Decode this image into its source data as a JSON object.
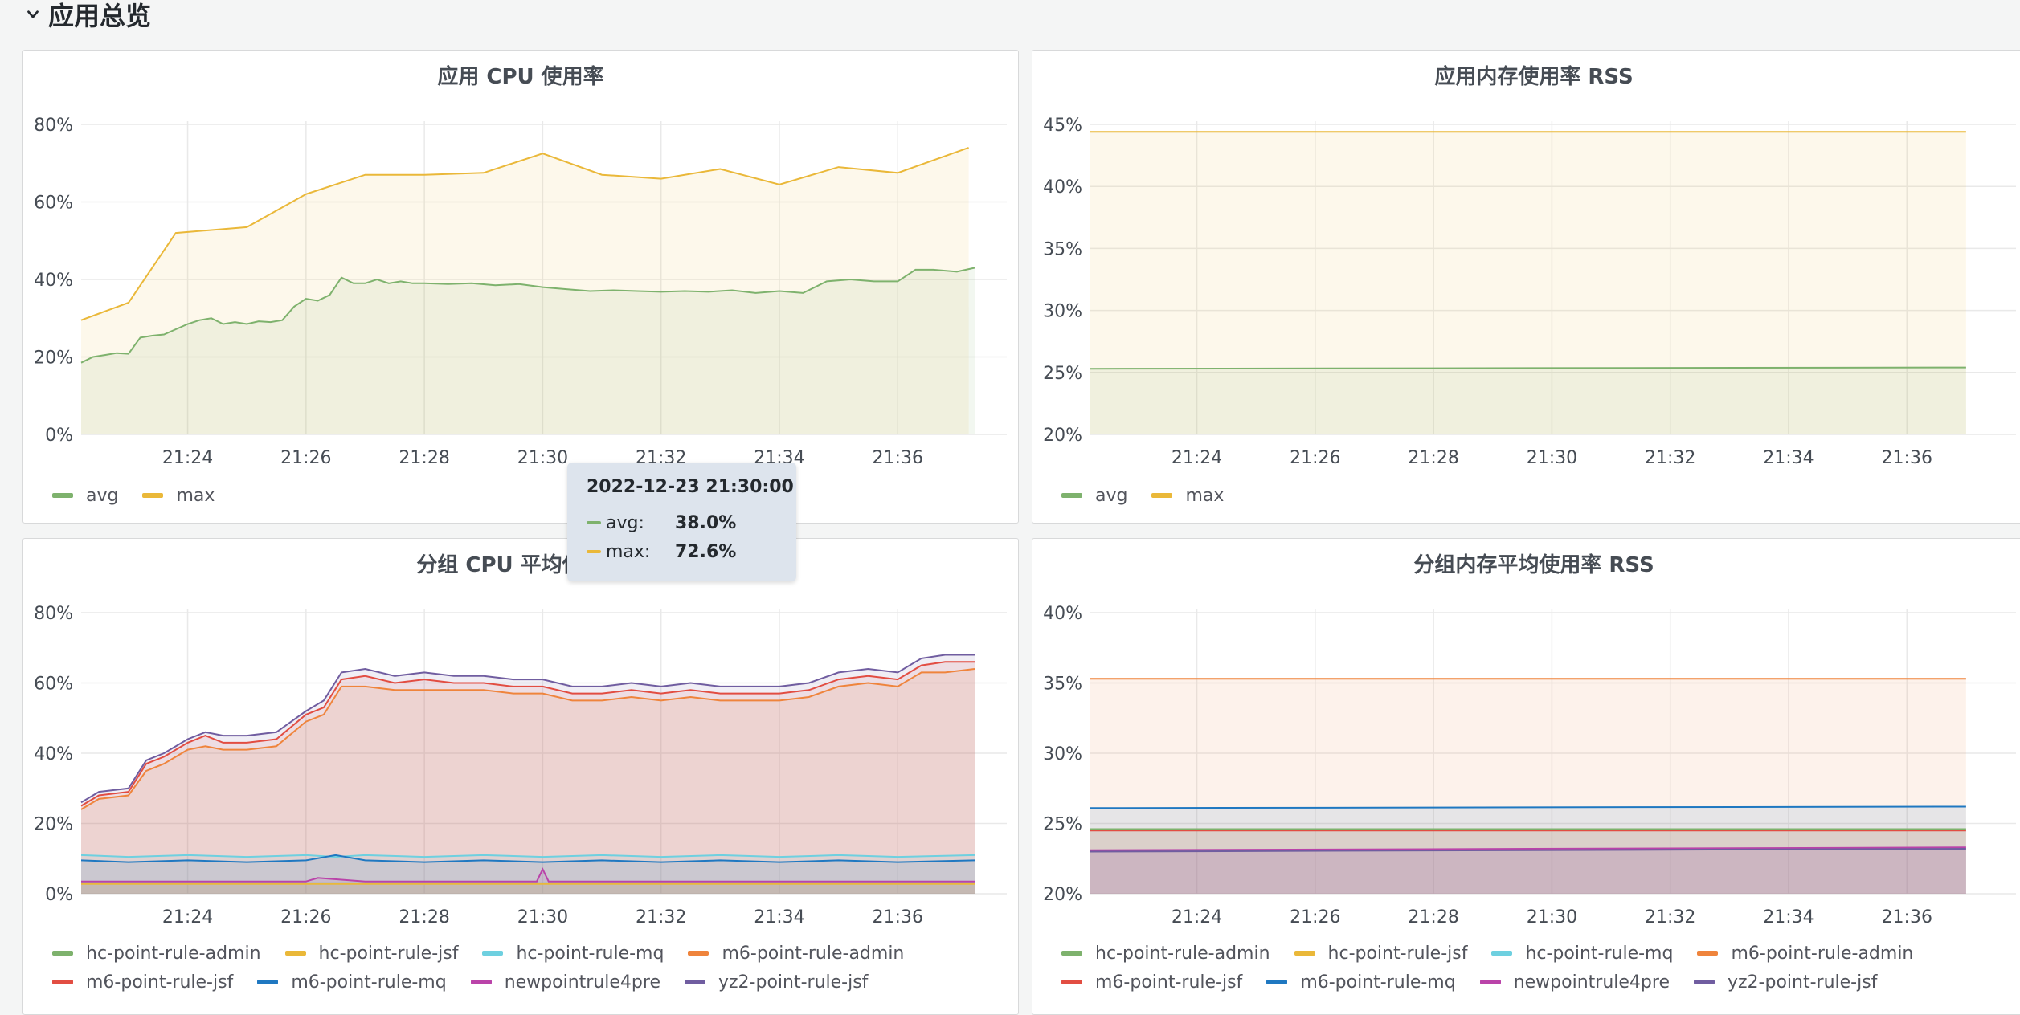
{
  "row": {
    "title": "应用总览"
  },
  "colors": {
    "hc-point-rule-admin": "#7eb26d",
    "hc-point-rule-jsf": "#eab839",
    "hc-point-rule-mq": "#6ed0e0",
    "m6-point-rule-admin": "#ef843c",
    "m6-point-rule-jsf": "#e24d42",
    "m6-point-rule-mq": "#1f78c1",
    "newpointrule4pre": "#ba43a9",
    "yz2-point-rule-jsf": "#705da0",
    "avg": "#7eb26d",
    "max": "#eab839"
  },
  "panels": {
    "cpu": {
      "title": "应用 CPU 使用率",
      "legend": [
        "avg",
        "max"
      ]
    },
    "mem": {
      "title": "应用内存使用率 RSS",
      "legend": [
        "avg",
        "max"
      ]
    },
    "group_cpu": {
      "title": "分组 CPU 平均使用率",
      "legend": [
        "hc-point-rule-admin",
        "hc-point-rule-jsf",
        "hc-point-rule-mq",
        "m6-point-rule-admin",
        "m6-point-rule-jsf",
        "m6-point-rule-mq",
        "newpointrule4pre",
        "yz2-point-rule-jsf"
      ]
    },
    "group_mem": {
      "title": "分组内存平均使用率 RSS",
      "legend": [
        "hc-point-rule-admin",
        "hc-point-rule-jsf",
        "hc-point-rule-mq",
        "m6-point-rule-admin",
        "m6-point-rule-jsf",
        "m6-point-rule-mq",
        "newpointrule4pre",
        "yz2-point-rule-jsf"
      ]
    }
  },
  "tooltip": {
    "time": "2022-12-23 21:30:00",
    "rows": [
      {
        "name": "avg:",
        "value": "38.0%",
        "color": "#7eb26d"
      },
      {
        "name": "max:",
        "value": "72.6%",
        "color": "#eab839"
      }
    ]
  },
  "chart_data": [
    {
      "id": "cpu",
      "type": "area",
      "title": "应用 CPU 使用率",
      "x_ticks": [
        "21:24",
        "21:26",
        "21:28",
        "21:30",
        "21:32",
        "21:34",
        "21:36"
      ],
      "x_tick_positions": [
        1,
        3,
        5,
        7,
        9,
        11,
        13
      ],
      "y_ticks": [
        "0%",
        "20%",
        "40%",
        "60%",
        "80%"
      ],
      "ylim": [
        0,
        80
      ],
      "xlim": [
        -0.8,
        14.3
      ],
      "series": [
        {
          "name": "max",
          "x": [
            -0.8,
            0,
            0.8,
            2,
            3,
            4,
            5,
            6,
            7,
            8,
            9,
            10,
            11,
            12,
            13,
            14.2
          ],
          "values": [
            29.5,
            34,
            52,
            53.5,
            62,
            67,
            67,
            67.5,
            72.5,
            67,
            66,
            68.5,
            64.5,
            69,
            67.5,
            74
          ]
        },
        {
          "name": "avg",
          "x": [
            -0.8,
            -0.6,
            -0.4,
            -0.2,
            0,
            0.2,
            0.4,
            0.6,
            1,
            1.2,
            1.4,
            1.6,
            1.8,
            2,
            2.2,
            2.4,
            2.6,
            2.8,
            3,
            3.2,
            3.4,
            3.6,
            3.8,
            4,
            4.2,
            4.4,
            4.6,
            4.8,
            5,
            5.4,
            5.8,
            6.2,
            6.6,
            7,
            7.4,
            7.8,
            8.2,
            8.6,
            9,
            9.4,
            9.8,
            10.2,
            10.6,
            11,
            11.4,
            11.8,
            12.2,
            12.6,
            13,
            13.3,
            13.6,
            14,
            14.3
          ],
          "values": [
            18.5,
            20,
            20.5,
            21,
            20.8,
            25,
            25.5,
            25.8,
            28.5,
            29.5,
            30,
            28.5,
            29,
            28.5,
            29.2,
            29,
            29.5,
            33,
            35,
            34.5,
            36,
            40.5,
            39,
            39,
            40,
            39,
            39.5,
            39,
            39,
            38.8,
            39,
            38.5,
            38.8,
            38,
            37.5,
            37,
            37.2,
            37,
            36.8,
            37,
            36.8,
            37.2,
            36.5,
            37,
            36.5,
            39.5,
            40,
            39.5,
            39.5,
            42.5,
            42.5,
            42,
            43
          ]
        }
      ],
      "legend": [
        "avg",
        "max"
      ]
    },
    {
      "id": "mem",
      "type": "area",
      "title": "应用内存使用率 RSS",
      "x_ticks": [
        "21:24",
        "21:26",
        "21:28",
        "21:30",
        "21:32",
        "21:34",
        "21:36"
      ],
      "x_tick_positions": [
        1,
        3,
        5,
        7,
        9,
        11,
        13
      ],
      "y_ticks": [
        "20%",
        "25%",
        "30%",
        "35%",
        "40%",
        "45%"
      ],
      "ylim": [
        20,
        45
      ],
      "xlim": [
        -0.8,
        14.3
      ],
      "series": [
        {
          "name": "max",
          "x": [
            -0.8,
            14.0
          ],
          "values": [
            44.4,
            44.4
          ]
        },
        {
          "name": "avg",
          "x": [
            -0.8,
            14.0
          ],
          "values": [
            25.3,
            25.4
          ]
        }
      ],
      "legend": [
        "avg",
        "max"
      ]
    },
    {
      "id": "group_cpu",
      "type": "area",
      "title": "分组 CPU 平均使用率",
      "x_ticks": [
        "21:24",
        "21:26",
        "21:28",
        "21:30",
        "21:32",
        "21:34",
        "21:36"
      ],
      "x_tick_positions": [
        1,
        3,
        5,
        7,
        9,
        11,
        13
      ],
      "y_ticks": [
        "0%",
        "20%",
        "40%",
        "60%",
        "80%"
      ],
      "ylim": [
        0,
        80
      ],
      "xlim": [
        -0.8,
        14.3
      ],
      "series": [
        {
          "name": "yz2-point-rule-jsf",
          "x": [
            -0.8,
            -0.5,
            0,
            0.3,
            0.6,
            1,
            1.3,
            1.6,
            2,
            2.5,
            3,
            3.3,
            3.6,
            4,
            4.5,
            5,
            5.5,
            6,
            6.5,
            7,
            7.5,
            8,
            8.5,
            9,
            9.5,
            10,
            10.5,
            11,
            11.5,
            12,
            12.5,
            13,
            13.4,
            13.8,
            14.3
          ],
          "values": [
            26,
            29,
            30,
            38,
            40,
            44,
            46,
            45,
            45,
            46,
            52,
            55,
            63,
            64,
            62,
            63,
            62,
            62,
            61,
            61,
            59,
            59,
            60,
            59,
            60,
            59,
            59,
            59,
            60,
            63,
            64,
            63,
            67,
            68,
            68
          ]
        },
        {
          "name": "m6-point-rule-jsf",
          "x": [
            -0.8,
            -0.5,
            0,
            0.3,
            0.6,
            1,
            1.3,
            1.6,
            2,
            2.5,
            3,
            3.3,
            3.6,
            4,
            4.5,
            5,
            5.5,
            6,
            6.5,
            7,
            7.5,
            8,
            8.5,
            9,
            9.5,
            10,
            10.5,
            11,
            11.5,
            12,
            12.5,
            13,
            13.4,
            13.8,
            14.3
          ],
          "values": [
            25,
            28,
            29,
            37,
            39,
            43,
            45,
            43,
            43,
            44,
            51,
            53,
            61,
            62,
            60,
            61,
            60,
            60,
            59,
            59,
            57,
            57,
            58,
            57,
            58,
            57,
            57,
            57,
            58,
            61,
            62,
            61,
            65,
            66,
            66
          ]
        },
        {
          "name": "m6-point-rule-admin",
          "x": [
            -0.8,
            -0.5,
            0,
            0.3,
            0.6,
            1,
            1.3,
            1.6,
            2,
            2.5,
            3,
            3.3,
            3.6,
            4,
            4.5,
            5,
            5.5,
            6,
            6.5,
            7,
            7.5,
            8,
            8.5,
            9,
            9.5,
            10,
            10.5,
            11,
            11.5,
            12,
            12.5,
            13,
            13.4,
            13.8,
            14.3
          ],
          "values": [
            24,
            27,
            28,
            35,
            37,
            41,
            42,
            41,
            41,
            42,
            49,
            51,
            59,
            59,
            58,
            58,
            58,
            58,
            57,
            57,
            55,
            55,
            56,
            55,
            56,
            55,
            55,
            55,
            56,
            59,
            60,
            59,
            63,
            63,
            64
          ]
        },
        {
          "name": "hc-point-rule-mq",
          "x": [
            -0.8,
            0,
            1,
            2,
            3,
            3.5,
            4,
            5,
            6,
            7,
            8,
            9,
            10,
            11,
            12,
            13,
            14.3
          ],
          "values": [
            11,
            10.5,
            11,
            10.5,
            11,
            10.5,
            11,
            10.5,
            11,
            10.5,
            11,
            10.5,
            11,
            10.5,
            11,
            10.5,
            11
          ]
        },
        {
          "name": "m6-point-rule-mq",
          "x": [
            -0.8,
            0,
            1,
            2,
            3,
            3.5,
            4,
            5,
            6,
            7,
            8,
            9,
            10,
            11,
            12,
            13,
            14.3
          ],
          "values": [
            9.5,
            9,
            9.5,
            9,
            9.5,
            11,
            9.5,
            9,
            9.5,
            9,
            9.5,
            9,
            9.5,
            9,
            9.5,
            9,
            9.5
          ]
        },
        {
          "name": "newpointrule4pre",
          "x": [
            -0.8,
            0,
            1,
            2,
            3,
            3.2,
            4,
            5,
            6,
            6.9,
            7,
            7.1,
            8,
            9,
            10,
            11,
            12,
            13,
            14.3
          ],
          "values": [
            3.5,
            3.5,
            3.5,
            3.5,
            3.5,
            4.5,
            3.5,
            3.5,
            3.5,
            3.5,
            7,
            3.5,
            3.5,
            3.5,
            3.5,
            3.5,
            3.5,
            3.5,
            3.5
          ]
        },
        {
          "name": "hc-point-rule-admin",
          "x": [
            -0.8,
            14.3
          ],
          "values": [
            3,
            3
          ]
        },
        {
          "name": "hc-point-rule-jsf",
          "x": [
            -0.8,
            14.3
          ],
          "values": [
            2.8,
            2.8
          ]
        }
      ],
      "legend": [
        "hc-point-rule-admin",
        "hc-point-rule-jsf",
        "hc-point-rule-mq",
        "m6-point-rule-admin",
        "m6-point-rule-jsf",
        "m6-point-rule-mq",
        "newpointrule4pre",
        "yz2-point-rule-jsf"
      ]
    },
    {
      "id": "group_mem",
      "type": "area",
      "title": "分组内存平均使用率 RSS",
      "x_ticks": [
        "21:24",
        "21:26",
        "21:28",
        "21:30",
        "21:32",
        "21:34",
        "21:36"
      ],
      "x_tick_positions": [
        1,
        3,
        5,
        7,
        9,
        11,
        13
      ],
      "y_ticks": [
        "20%",
        "25%",
        "30%",
        "35%",
        "40%"
      ],
      "ylim": [
        20,
        40
      ],
      "xlim": [
        -0.8,
        14.3
      ],
      "series": [
        {
          "name": "m6-point-rule-admin",
          "x": [
            -0.8,
            14.0
          ],
          "values": [
            35.3,
            35.3
          ]
        },
        {
          "name": "m6-point-rule-mq",
          "x": [
            -0.8,
            14.0
          ],
          "values": [
            26.1,
            26.2
          ]
        },
        {
          "name": "hc-point-rule-admin",
          "x": [
            -0.8,
            14.0
          ],
          "values": [
            24.6,
            24.6
          ]
        },
        {
          "name": "m6-point-rule-jsf",
          "x": [
            -0.8,
            14.0
          ],
          "values": [
            24.5,
            24.5
          ]
        },
        {
          "name": "newpointrule4pre",
          "x": [
            -0.8,
            14.0
          ],
          "values": [
            23.1,
            23.3
          ]
        },
        {
          "name": "yz2-point-rule-jsf",
          "x": [
            -0.8,
            14.0
          ],
          "values": [
            23.0,
            23.2
          ]
        }
      ],
      "legend": [
        "hc-point-rule-admin",
        "hc-point-rule-jsf",
        "hc-point-rule-mq",
        "m6-point-rule-admin",
        "m6-point-rule-jsf",
        "m6-point-rule-mq",
        "newpointrule4pre",
        "yz2-point-rule-jsf"
      ]
    }
  ]
}
